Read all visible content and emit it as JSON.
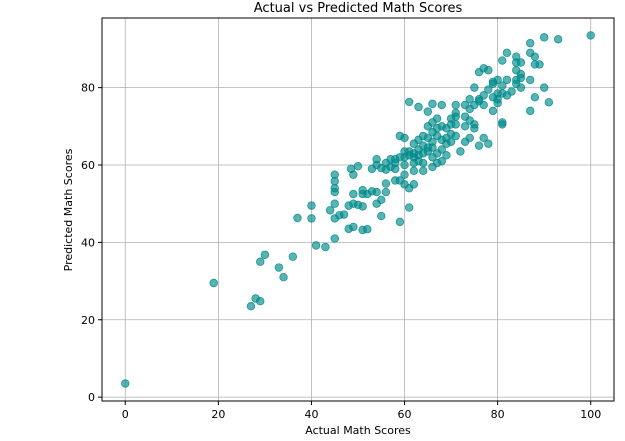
{
  "chart_data": {
    "type": "scatter",
    "title": "Actual vs Predicted Math Scores",
    "xlabel": "Actual Math Scores",
    "ylabel": "Predicted Math Scores",
    "xlim": [
      -5,
      105
    ],
    "ylim": [
      -1,
      98
    ],
    "xticks": [
      0,
      20,
      40,
      60,
      80,
      100
    ],
    "yticks": [
      0,
      20,
      40,
      60,
      80
    ],
    "grid": true,
    "marker_color": "#008b8b",
    "marker_alpha": 0.65,
    "points": [
      [
        0,
        3.5
      ],
      [
        19,
        29.5
      ],
      [
        27,
        23.5
      ],
      [
        28,
        25.5
      ],
      [
        29,
        24.8
      ],
      [
        29,
        35
      ],
      [
        30,
        36.8
      ],
      [
        33,
        33.5
      ],
      [
        34,
        31
      ],
      [
        36,
        36.3
      ],
      [
        37,
        46.3
      ],
      [
        40,
        46.2
      ],
      [
        40,
        49.5
      ],
      [
        41,
        39.2
      ],
      [
        43,
        38.8
      ],
      [
        44,
        48.3
      ],
      [
        45,
        41
      ],
      [
        45,
        46.2
      ],
      [
        45,
        50
      ],
      [
        45,
        53
      ],
      [
        45,
        54
      ],
      [
        45,
        55.8
      ],
      [
        45,
        57.5
      ],
      [
        46,
        47
      ],
      [
        47,
        47.2
      ],
      [
        48,
        43.5
      ],
      [
        48,
        49.5
      ],
      [
        48.5,
        59
      ],
      [
        49,
        44
      ],
      [
        49,
        50
      ],
      [
        49,
        52.5
      ],
      [
        49,
        57.5
      ],
      [
        50,
        49.7
      ],
      [
        50,
        59.7
      ],
      [
        51,
        43.2
      ],
      [
        51,
        49.3
      ],
      [
        51,
        52.5
      ],
      [
        51,
        53.5
      ],
      [
        52,
        43.4
      ],
      [
        52,
        52.5
      ],
      [
        53,
        53.2
      ],
      [
        53,
        59
      ],
      [
        54,
        50
      ],
      [
        54,
        53
      ],
      [
        54,
        60
      ],
      [
        54,
        61.5
      ],
      [
        55,
        46.8
      ],
      [
        55,
        51
      ],
      [
        55,
        59.2
      ],
      [
        56,
        53
      ],
      [
        56,
        55.2
      ],
      [
        56,
        58.8
      ],
      [
        56,
        60.5
      ],
      [
        57,
        59.5
      ],
      [
        57,
        61.5
      ],
      [
        58,
        56
      ],
      [
        58,
        59
      ],
      [
        58,
        60.5
      ],
      [
        58,
        61.5
      ],
      [
        59,
        45.3
      ],
      [
        59,
        56
      ],
      [
        59,
        62
      ],
      [
        59,
        67.5
      ],
      [
        60,
        55
      ],
      [
        60,
        57.5
      ],
      [
        60,
        60
      ],
      [
        60,
        62
      ],
      [
        60,
        63.5
      ],
      [
        60,
        67
      ],
      [
        61,
        49
      ],
      [
        61,
        54
      ],
      [
        61,
        62.5
      ],
      [
        61,
        63.5
      ],
      [
        61,
        76.3
      ],
      [
        62,
        55
      ],
      [
        62,
        58.5
      ],
      [
        62,
        60.5
      ],
      [
        62,
        62
      ],
      [
        62,
        63
      ],
      [
        62,
        65.5
      ],
      [
        63,
        61
      ],
      [
        63,
        62.5
      ],
      [
        63,
        64
      ],
      [
        63,
        66.5
      ],
      [
        63,
        75
      ],
      [
        64,
        58.5
      ],
      [
        64,
        60.5
      ],
      [
        64,
        63
      ],
      [
        64,
        65
      ],
      [
        64,
        67.5
      ],
      [
        65,
        63.5
      ],
      [
        65,
        64.5
      ],
      [
        65,
        67
      ],
      [
        65,
        70
      ],
      [
        65,
        73.8
      ],
      [
        66,
        59.5
      ],
      [
        66,
        62
      ],
      [
        66,
        64.5
      ],
      [
        66,
        66
      ],
      [
        66,
        68.5
      ],
      [
        66,
        71
      ],
      [
        66,
        75.8
      ],
      [
        67,
        60.5
      ],
      [
        67,
        63
      ],
      [
        67,
        67.5
      ],
      [
        67,
        69.5
      ],
      [
        67,
        72
      ],
      [
        68,
        61
      ],
      [
        68,
        64
      ],
      [
        68,
        66.5
      ],
      [
        68,
        70
      ],
      [
        68,
        75.5
      ],
      [
        69,
        62.5
      ],
      [
        69,
        65.5
      ],
      [
        69,
        67
      ],
      [
        69,
        69.5
      ],
      [
        70,
        66
      ],
      [
        70,
        68
      ],
      [
        70,
        70.5
      ],
      [
        70,
        72
      ],
      [
        71,
        67.5
      ],
      [
        71,
        70.5
      ],
      [
        71,
        72.5
      ],
      [
        71,
        73.5
      ],
      [
        71,
        75.5
      ],
      [
        72,
        63.5
      ],
      [
        73,
        66
      ],
      [
        73,
        70
      ],
      [
        73,
        72.5
      ],
      [
        73,
        75.5
      ],
      [
        74,
        67
      ],
      [
        74,
        71.5
      ],
      [
        74,
        74.5
      ],
      [
        74,
        77
      ],
      [
        75,
        69.5
      ],
      [
        75,
        70.5
      ],
      [
        75,
        75.5
      ],
      [
        75,
        80
      ],
      [
        76,
        65
      ],
      [
        76,
        76.5
      ],
      [
        76,
        77
      ],
      [
        76,
        84
      ],
      [
        77,
        67
      ],
      [
        77,
        75.5
      ],
      [
        77,
        78
      ],
      [
        77,
        85
      ],
      [
        78,
        65.5
      ],
      [
        78,
        79.5
      ],
      [
        78,
        84.5
      ],
      [
        79,
        74
      ],
      [
        79,
        77.5
      ],
      [
        79,
        81
      ],
      [
        79,
        81.5
      ],
      [
        80,
        76
      ],
      [
        80,
        77
      ],
      [
        80,
        78.5
      ],
      [
        80,
        82
      ],
      [
        81,
        70.5
      ],
      [
        81,
        71
      ],
      [
        81,
        78.5
      ],
      [
        81,
        80.5
      ],
      [
        81,
        87
      ],
      [
        82,
        78
      ],
      [
        82,
        82
      ],
      [
        82,
        89
      ],
      [
        83,
        79
      ],
      [
        84,
        81
      ],
      [
        84,
        82
      ],
      [
        84,
        84.5
      ],
      [
        84,
        86.5
      ],
      [
        84,
        88
      ],
      [
        85,
        80
      ],
      [
        85,
        82.5
      ],
      [
        85,
        83.5
      ],
      [
        85,
        86.5
      ],
      [
        87,
        74
      ],
      [
        87,
        82
      ],
      [
        87,
        89
      ],
      [
        87,
        91.5
      ],
      [
        88,
        77.5
      ],
      [
        88,
        86
      ],
      [
        88,
        88
      ],
      [
        89,
        86
      ],
      [
        90,
        80
      ],
      [
        90,
        93
      ],
      [
        91,
        76.2
      ],
      [
        93,
        92.5
      ],
      [
        100,
        93.5
      ]
    ]
  }
}
